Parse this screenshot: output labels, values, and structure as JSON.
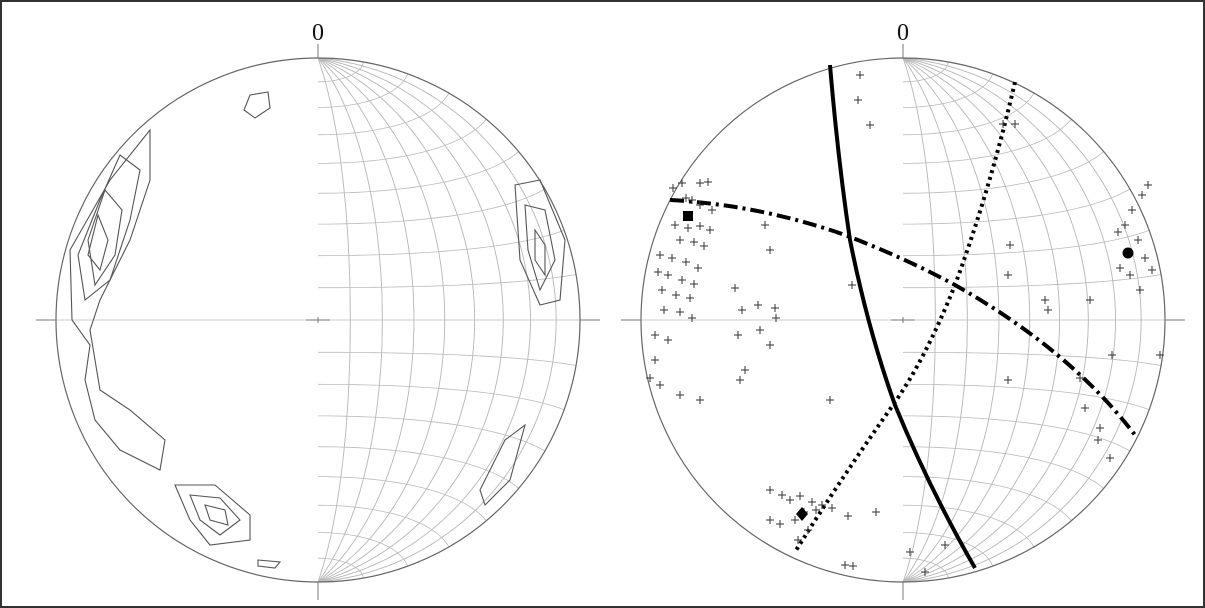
{
  "nets": [
    {
      "label": "0"
    },
    {
      "label": "0"
    }
  ]
}
